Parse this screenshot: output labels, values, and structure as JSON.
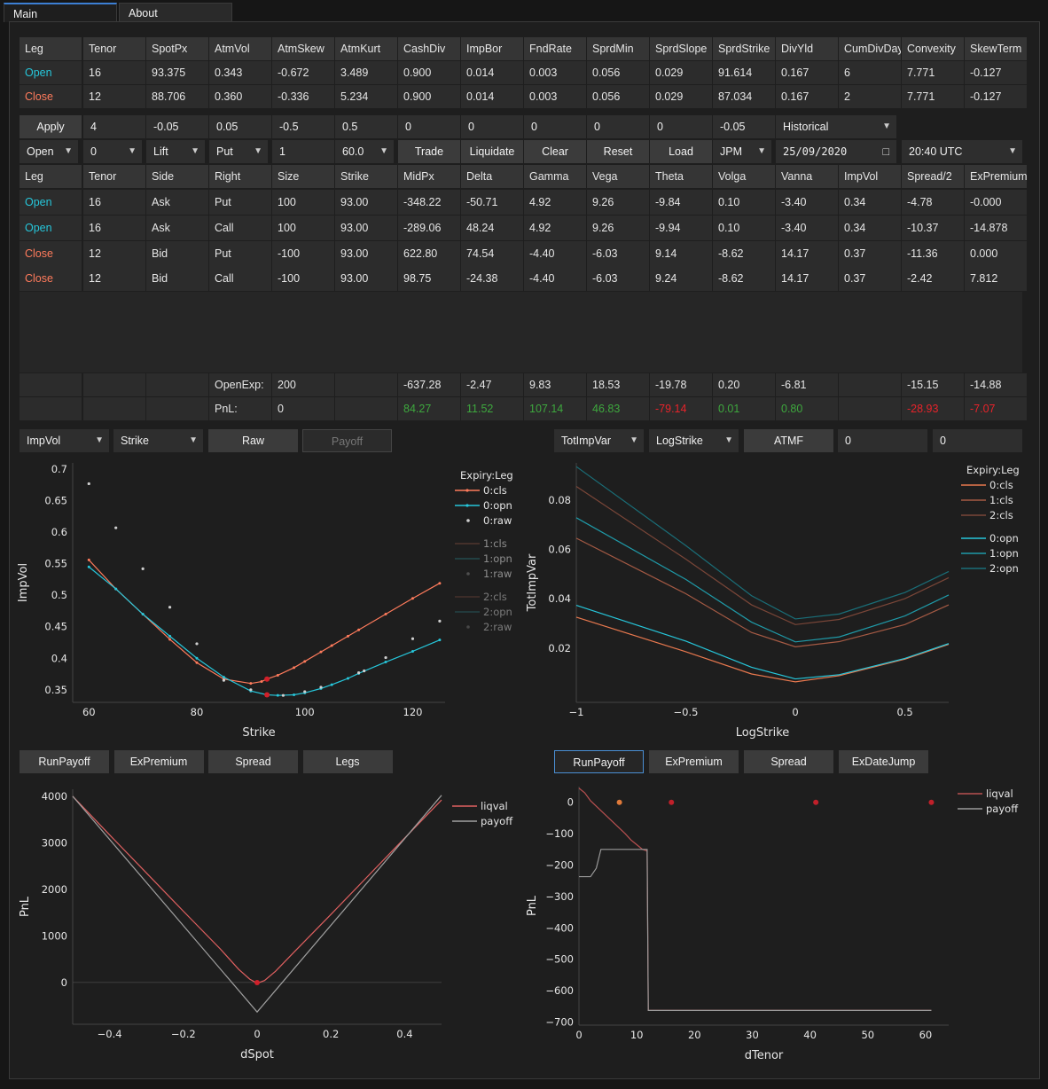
{
  "tabs": [
    "Main",
    "About"
  ],
  "params": {
    "headers": [
      "Leg",
      "Tenor",
      "SpotPx",
      "AtmVol",
      "AtmSkew",
      "AtmKurt",
      "CashDiv",
      "ImpBor",
      "FndRate",
      "SprdMin",
      "SprdSlope",
      "SprdStrike",
      "DivYld",
      "CumDivDay",
      "Convexity",
      "SkewTerm"
    ],
    "rows": [
      [
        "Open",
        "16",
        "93.375",
        "0.343",
        "-0.672",
        "3.489",
        "0.900",
        "0.014",
        "0.003",
        "0.056",
        "0.029",
        "91.614",
        "0.167",
        "6",
        "7.771",
        "-0.127"
      ],
      [
        "Close",
        "12",
        "88.706",
        "0.360",
        "-0.336",
        "5.234",
        "0.900",
        "0.014",
        "0.003",
        "0.056",
        "0.029",
        "87.034",
        "0.167",
        "2",
        "7.771",
        "-0.127"
      ]
    ]
  },
  "controls1": {
    "apply_label": "Apply",
    "inputs": [
      "4",
      "-0.05",
      "0.05",
      "-0.5",
      "0.5",
      "0",
      "0",
      "0",
      "0",
      "0",
      "-0.05"
    ],
    "mode_select": "Historical"
  },
  "controls2": {
    "leg_select": "Open",
    "tenor_select": "0",
    "side_select": "Lift",
    "right_select": "Put",
    "size_input": "1",
    "strike_select": "60.0",
    "trade_label": "Trade",
    "liquidate_label": "Liquidate",
    "clear_label": "Clear",
    "reset_label": "Reset",
    "load_label": "Load",
    "ticker_select": "JPM",
    "date_input": "25/09/2020",
    "time_select": "20:40 UTC"
  },
  "positions": {
    "headers": [
      "Leg",
      "Tenor",
      "Side",
      "Right",
      "Size",
      "Strike",
      "MidPx",
      "Delta",
      "Gamma",
      "Vega",
      "Theta",
      "Volga",
      "Vanna",
      "ImpVol",
      "Spread/2",
      "ExPremium"
    ],
    "rows": [
      [
        "Open",
        "16",
        "Ask",
        "Put",
        "100",
        "93.00",
        "-348.22",
        "-50.71",
        "4.92",
        "9.26",
        "-9.84",
        "0.10",
        "-3.40",
        "0.34",
        "-4.78",
        "-0.000"
      ],
      [
        "Open",
        "16",
        "Ask",
        "Call",
        "100",
        "93.00",
        "-289.06",
        "48.24",
        "4.92",
        "9.26",
        "-9.94",
        "0.10",
        "-3.40",
        "0.34",
        "-10.37",
        "-14.878"
      ],
      [
        "Close",
        "12",
        "Bid",
        "Put",
        "-100",
        "93.00",
        "622.80",
        "74.54",
        "-4.40",
        "-6.03",
        "9.14",
        "-8.62",
        "14.17",
        "0.37",
        "-11.36",
        "0.000"
      ],
      [
        "Close",
        "12",
        "Bid",
        "Call",
        "-100",
        "93.00",
        "98.75",
        "-24.38",
        "-4.40",
        "-6.03",
        "9.24",
        "-8.62",
        "14.17",
        "0.37",
        "-2.42",
        "7.812"
      ]
    ]
  },
  "summary": {
    "openexp_label": "OpenExp:",
    "openexp_size": "200",
    "openexp_values": [
      "-637.28",
      "-2.47",
      "9.83",
      "18.53",
      "-19.78",
      "0.20",
      "-6.81",
      "",
      "-15.15",
      "-14.88"
    ],
    "pnl_label": "PnL:",
    "pnl_size": "0",
    "pnl_values": [
      "84.27",
      "11.52",
      "107.14",
      "46.83",
      "-79.14",
      "0.01",
      "0.80",
      "",
      "-28.93",
      "-7.07"
    ],
    "pnl_colors": [
      "pos",
      "pos",
      "pos",
      "pos",
      "neg",
      "pos",
      "pos",
      "",
      "neg",
      "neg"
    ]
  },
  "vol_controls": {
    "y_select": "ImpVol",
    "x_select": "Strike",
    "raw_label": "Raw",
    "payoff_label": "Payoff"
  },
  "var_controls": {
    "y_select": "TotImpVar",
    "x_select": "LogStrike",
    "atmf_label": "ATMF",
    "input1": "0",
    "input2": "0"
  },
  "pnl_buttons_left": [
    "RunPayoff",
    "ExPremium",
    "Spread",
    "Legs"
  ],
  "pnl_buttons_right": [
    "RunPayoff",
    "ExPremium",
    "Spread",
    "ExDateJump"
  ],
  "colors": {
    "open": "#26c6da",
    "close": "#ff7b5c",
    "pos": "#3ea83e",
    "neg": "#e8232a",
    "liqval": "#e06060",
    "payoff": "#a0a0a0"
  },
  "chart_data": [
    {
      "type": "line",
      "xlabel": "Strike",
      "ylabel": "ImpVol",
      "xlim": [
        57,
        126
      ],
      "ylim": [
        0.33,
        0.71
      ],
      "xticks": [
        "60",
        "80",
        "100",
        "120"
      ],
      "yticks": [
        "0.35",
        "0.4",
        "0.45",
        "0.5",
        "0.55",
        "0.6",
        "0.65",
        "0.7"
      ],
      "legend_title": "Expiry:Leg",
      "legend": [
        "0:cls",
        "0:opn",
        "0:raw",
        "1:cls",
        "1:opn",
        "1:raw",
        "2:cls",
        "2:opn",
        "2:raw"
      ],
      "series": [
        {
          "name": "0:cls",
          "x": [
            60,
            65,
            70,
            75,
            80,
            85,
            90,
            92,
            93,
            95,
            98,
            100,
            103,
            105,
            108,
            110,
            115,
            120,
            125
          ],
          "y": [
            0.556,
            0.51,
            0.47,
            0.43,
            0.393,
            0.367,
            0.36,
            0.363,
            0.367,
            0.373,
            0.385,
            0.395,
            0.41,
            0.42,
            0.435,
            0.445,
            0.47,
            0.495,
            0.519
          ]
        },
        {
          "name": "0:opn",
          "x": [
            60,
            65,
            70,
            75,
            80,
            85,
            90,
            93,
            95,
            98,
            100,
            103,
            105,
            108,
            110,
            115,
            120,
            125
          ],
          "y": [
            0.545,
            0.51,
            0.47,
            0.435,
            0.4,
            0.37,
            0.348,
            0.342,
            0.341,
            0.342,
            0.345,
            0.352,
            0.358,
            0.368,
            0.376,
            0.394,
            0.411,
            0.429
          ]
        },
        {
          "name": "0:raw",
          "x": [
            60,
            65,
            70,
            75,
            80,
            85,
            90,
            93,
            96,
            100,
            103,
            110,
            111,
            115,
            120,
            125
          ],
          "y": [
            0.677,
            0.607,
            0.542,
            0.481,
            0.423,
            0.365,
            0.35,
            0.341,
            0.341,
            0.347,
            0.354,
            0.377,
            0.38,
            0.401,
            0.431,
            0.459
          ]
        }
      ],
      "markers": [
        {
          "x": 93,
          "y": 0.367
        },
        {
          "x": 93,
          "y": 0.342
        }
      ]
    },
    {
      "type": "line",
      "xlabel": "LogStrike",
      "ylabel": "TotImpVar",
      "xlim": [
        -1,
        0.7
      ],
      "ylim": [
        -0.002,
        0.095
      ],
      "xticks": [
        "−1",
        "−0.5",
        "0",
        "0.5"
      ],
      "yticks": [
        "0.02",
        "0.04",
        "0.06",
        "0.08"
      ],
      "legend_title": "Expiry:Leg",
      "legend": [
        "0:cls",
        "1:cls",
        "2:cls",
        "0:opn",
        "1:opn",
        "2:opn"
      ],
      "series": [
        {
          "name": "0:cls",
          "x": [
            -1,
            -0.5,
            -0.2,
            0,
            0.2,
            0.5,
            0.7
          ],
          "y": [
            0.0325,
            0.0185,
            0.0095,
            0.0063,
            0.0088,
            0.0155,
            0.0215
          ]
        },
        {
          "name": "1:cls",
          "x": [
            -1,
            -0.5,
            -0.2,
            0,
            0.2,
            0.5,
            0.7
          ],
          "y": [
            0.0645,
            0.042,
            0.0263,
            0.0205,
            0.0226,
            0.0295,
            0.0375
          ]
        },
        {
          "name": "2:cls",
          "x": [
            -1,
            -0.5,
            -0.2,
            0,
            0.2,
            0.5,
            0.7
          ],
          "y": [
            0.0855,
            0.056,
            0.0375,
            0.0295,
            0.0316,
            0.04,
            0.0485
          ]
        },
        {
          "name": "0:opn",
          "x": [
            -1,
            -0.5,
            -0.2,
            0,
            0.2,
            0.5,
            0.7
          ],
          "y": [
            0.0373,
            0.0228,
            0.0122,
            0.0075,
            0.0092,
            0.0158,
            0.0218
          ]
        },
        {
          "name": "1:opn",
          "x": [
            -1,
            -0.5,
            -0.2,
            0,
            0.2,
            0.5,
            0.7
          ],
          "y": [
            0.0728,
            0.0478,
            0.0305,
            0.0225,
            0.0245,
            0.033,
            0.0415
          ]
        },
        {
          "name": "2:opn",
          "x": [
            -1,
            -0.5,
            -0.2,
            0,
            0.2,
            0.5,
            0.7
          ],
          "y": [
            0.0935,
            0.0615,
            0.0412,
            0.0318,
            0.0338,
            0.0425,
            0.051
          ]
        }
      ]
    },
    {
      "type": "line",
      "xlabel": "dSpot",
      "ylabel": "PnL",
      "xlim": [
        -0.5,
        0.5
      ],
      "ylim": [
        -900,
        4150
      ],
      "xticks": [
        "−0.4",
        "−0.2",
        "0",
        "0.2",
        "0.4"
      ],
      "yticks": [
        "0",
        "1000",
        "2000",
        "3000",
        "4000"
      ],
      "legend": [
        "liqval",
        "payoff"
      ],
      "series": [
        {
          "name": "liqval",
          "x": [
            -0.5,
            -0.4,
            -0.3,
            -0.2,
            -0.1,
            -0.05,
            -0.02,
            0,
            0.02,
            0.05,
            0.1,
            0.2,
            0.3,
            0.4,
            0.5
          ],
          "y": [
            4000,
            3170,
            2350,
            1530,
            720,
            280,
            70,
            -20,
            40,
            240,
            650,
            1460,
            2280,
            3100,
            3920
          ]
        },
        {
          "name": "payoff",
          "x": [
            -0.5,
            0,
            0.5
          ],
          "y": [
            4000,
            -637,
            4020
          ]
        }
      ],
      "markers": [
        {
          "x": 0,
          "y": -5
        }
      ]
    },
    {
      "type": "line",
      "xlabel": "dTenor",
      "ylabel": "PnL",
      "xlim": [
        0,
        64
      ],
      "ylim": [
        -710,
        50
      ],
      "xticks": [
        "0",
        "10",
        "20",
        "30",
        "40",
        "50",
        "60"
      ],
      "yticks": [
        "0",
        "−100",
        "−200",
        "−300",
        "−400",
        "−500",
        "−600",
        "−700"
      ],
      "legend": [
        "liqval",
        "payoff"
      ],
      "series": [
        {
          "name": "liqval",
          "x": [
            0,
            1,
            2,
            4,
            6,
            8,
            9,
            10,
            11,
            11.8,
            12,
            15,
            20,
            30,
            40,
            50,
            61
          ],
          "y": [
            45,
            30,
            5,
            -30,
            -65,
            -100,
            -120,
            -135,
            -150,
            -155,
            -663,
            -663,
            -663,
            -663,
            -663,
            -663,
            -663
          ]
        },
        {
          "name": "payoff",
          "x": [
            0,
            2,
            3,
            3.8,
            5,
            8,
            11,
            11.8,
            12,
            15,
            20,
            30,
            40,
            50,
            61
          ],
          "y": [
            -237,
            -237,
            -210,
            -150,
            -150,
            -150,
            -150,
            -150,
            -663,
            -663,
            -663,
            -663,
            -663,
            -663,
            -663
          ]
        }
      ],
      "markers": [
        {
          "x": 7,
          "y": 0,
          "color": "#e07a3a"
        },
        {
          "x": 16,
          "y": 0,
          "color": "#c0202a"
        },
        {
          "x": 41,
          "y": 0,
          "color": "#c0202a"
        },
        {
          "x": 61,
          "y": 0,
          "color": "#c0202a"
        }
      ]
    }
  ]
}
